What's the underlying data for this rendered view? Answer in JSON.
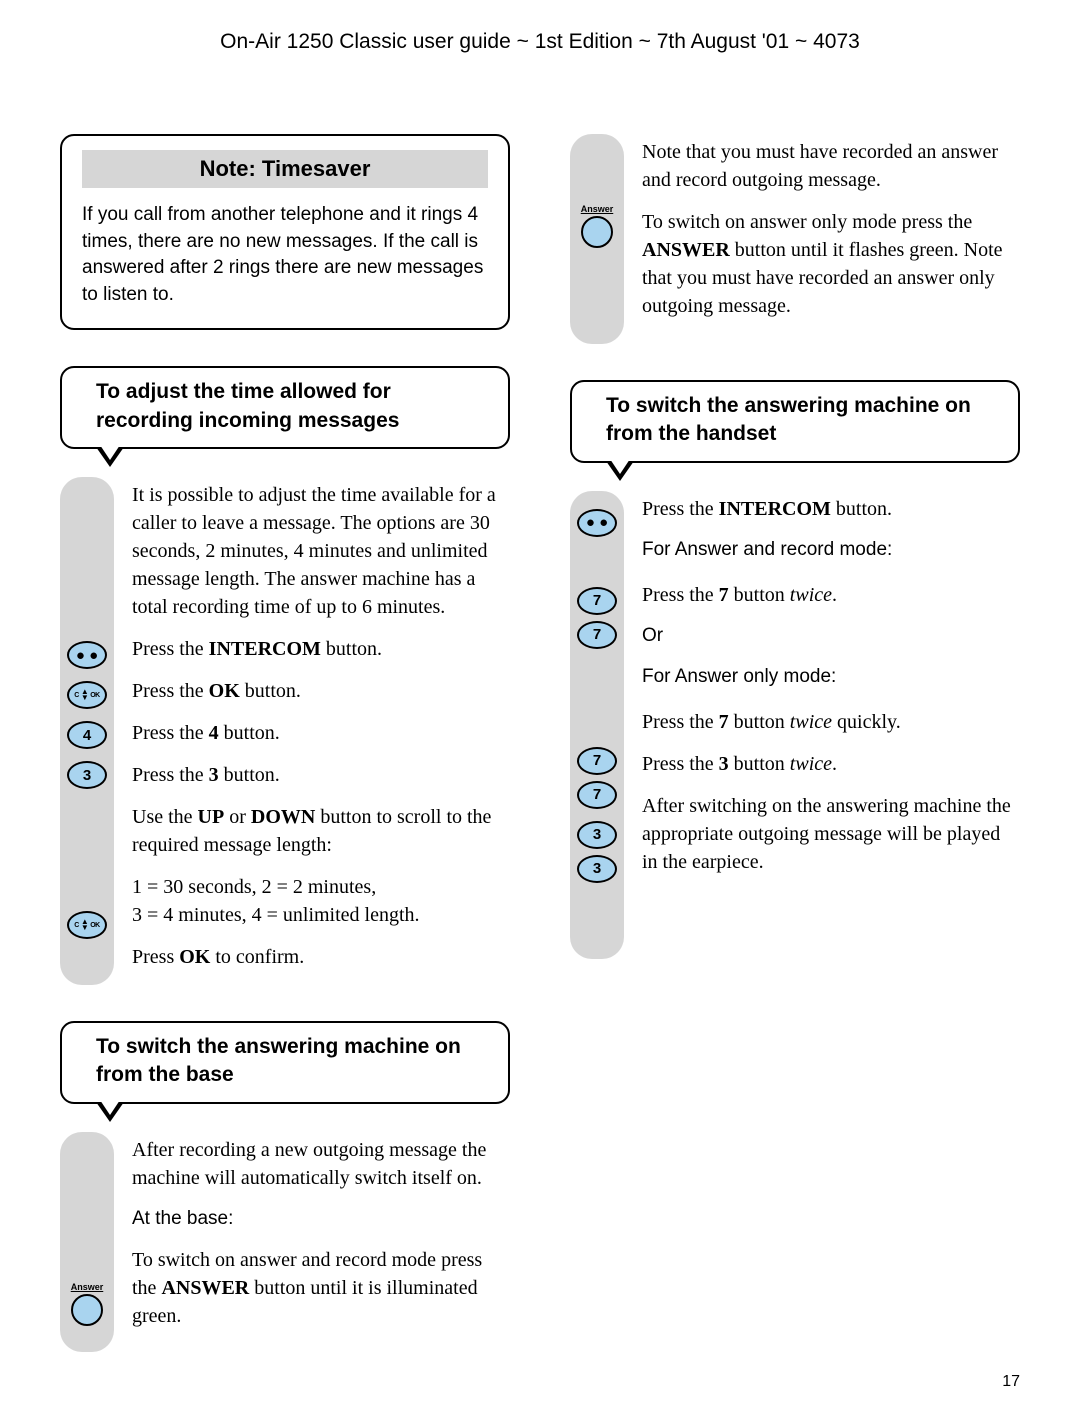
{
  "header": "On-Air 1250 Classic user guide ~ 1st Edition ~ 7th August '01 ~ 4073",
  "page_number": "17",
  "note": {
    "title": "Note: Timesaver",
    "body": "If you call from another telephone and it rings 4 times, there are no new messages. If the call is answered after 2 rings there are new messages to listen to."
  },
  "section1": {
    "title": "To adjust the time allowed for recording incoming messages",
    "intro": "It is possible to adjust the time available for a caller to leave a message. The options are 30 seconds, 2 minutes, 4 minutes and unlimited message length. The answer machine has a total recording time of up to 6 minutes.",
    "steps": {
      "intercom": "Press the <b>INTERCOM</b> button.",
      "ok": "Press the <b>OK</b> button.",
      "four": "Press the <b>4</b> button.",
      "three": "Press the <b>3</b> button.",
      "scroll": "Use the <b>UP</b> or <b>DOWN</b> button to scroll to the required message length:",
      "legend": "1 = 30 seconds, 2 = 2 minutes,<br>3 = 4 minutes, 4 = unlimited length.",
      "confirm": "Press <b>OK</b> to confirm."
    }
  },
  "section2": {
    "title": "To switch the answering machine on from the base",
    "p1": "After recording a new outgoing message the machine will automatically switch itself on.",
    "p2": "At the base:",
    "p3": "To switch on answer and record mode press the <b>ANSWER</b> button until it is illuminated green."
  },
  "right_top": {
    "p1": "Note that you must have recorded an answer and record outgoing message.",
    "p2": "To switch on answer only mode press the <b>ANSWER</b> button until it flashes green. Note that you must have recorded an answer only outgoing message."
  },
  "section3": {
    "title": "To switch the answering machine on from the handset",
    "intercom": "Press the <b>INTERCOM</b> button.",
    "mode1": "For Answer and record mode:",
    "seven": "Press the <b>7</b> button <i>twice</i>.",
    "or": "Or",
    "mode2": "For Answer only mode:",
    "seven2": "Press the <b>7</b> button <i>twice</i> quickly.",
    "three": "Press the <b>3</b> button <i>twice</i>.",
    "after": "After switching on the answering machine the appropriate outgoing message will be played in the earpiece."
  },
  "buttons": {
    "four": "4",
    "three": "3",
    "seven": "7",
    "answer_label": "Answer",
    "nav_c": "C",
    "nav_ok": "OK"
  }
}
